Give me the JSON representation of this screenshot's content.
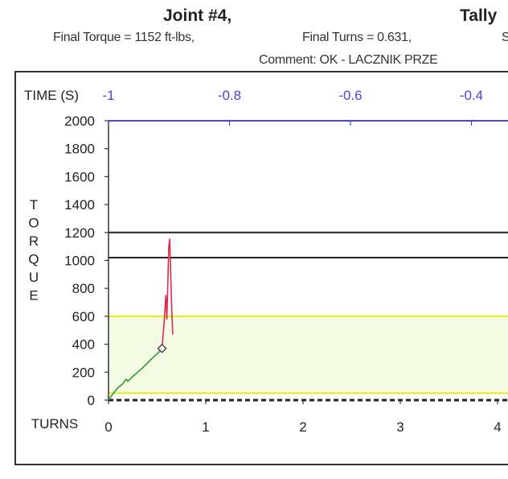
{
  "header": {
    "joint": "Joint #4,",
    "tally": "Tally",
    "final_torque": "Final Torque = 1152 ft-lbs,",
    "final_turns": "Final Turns = 0.631,",
    "trailing": "S",
    "comment": "Comment: OK - LACZNIK PRZE"
  },
  "colors": {
    "time_axis": "#4a43d6",
    "torque_trace": "#2e9a3c",
    "final_trace": "#e0294a",
    "yellow_limit": "#e6ea1c",
    "black_limit": "#222222",
    "shading": "#f3fce2"
  },
  "chart_data": {
    "type": "line",
    "title": "",
    "time_axis_label": "TIME (S)",
    "time_ticks": [
      -1,
      -0.8,
      -0.6,
      -0.4
    ],
    "time_tick_labels": [
      "-1",
      "-0.8",
      "-0.6",
      "-0.4"
    ],
    "xlabel": "TURNS",
    "x_ticks": [
      0,
      1,
      2,
      3,
      4
    ],
    "x_tick_labels": [
      "0",
      "1",
      "2",
      "3",
      "4"
    ],
    "xlim": [
      0,
      4
    ],
    "ylabel_letters": [
      "T",
      "O",
      "R",
      "Q",
      "U",
      "E"
    ],
    "y_ticks": [
      0,
      200,
      400,
      600,
      800,
      1000,
      1200,
      1400,
      1600,
      1800,
      2000
    ],
    "y_tick_labels": [
      "0",
      "200",
      "400",
      "600",
      "800",
      "1000",
      "1200",
      "1400",
      "1600",
      "1800",
      "2000"
    ],
    "ylim": [
      0,
      2000
    ],
    "horizontal_lines": [
      {
        "value": 2000,
        "color": "#4a43d6",
        "style": "solid"
      },
      {
        "value": 1200,
        "color": "#222222",
        "style": "solid"
      },
      {
        "value": 1020,
        "color": "#222222",
        "style": "solid"
      },
      {
        "value": 600,
        "color": "#e6ea1c",
        "style": "solid"
      },
      {
        "value": 50,
        "color": "#e6ea1c",
        "style": "solid"
      },
      {
        "value": 0,
        "color": "#222222",
        "style": "dashed"
      }
    ],
    "shaded_band": [
      50,
      600
    ],
    "series": [
      {
        "color": "#2e9a3c",
        "points": [
          [
            0,
            0
          ],
          [
            0.05,
            50
          ],
          [
            0.1,
            90
          ],
          [
            0.15,
            120
          ],
          [
            0.18,
            150
          ],
          [
            0.2,
            135
          ],
          [
            0.25,
            170
          ],
          [
            0.3,
            200
          ],
          [
            0.35,
            230
          ],
          [
            0.4,
            265
          ],
          [
            0.45,
            300
          ],
          [
            0.5,
            330
          ],
          [
            0.55,
            370
          ]
        ]
      },
      {
        "color": "#e0294a",
        "points": [
          [
            0.55,
            370
          ],
          [
            0.57,
            540
          ],
          [
            0.59,
            750
          ],
          [
            0.6,
            580
          ],
          [
            0.62,
            1100
          ],
          [
            0.63,
            1152
          ],
          [
            0.64,
            900
          ],
          [
            0.65,
            640
          ],
          [
            0.66,
            470
          ]
        ]
      }
    ],
    "marker": {
      "x": 0.55,
      "y": 370
    }
  }
}
